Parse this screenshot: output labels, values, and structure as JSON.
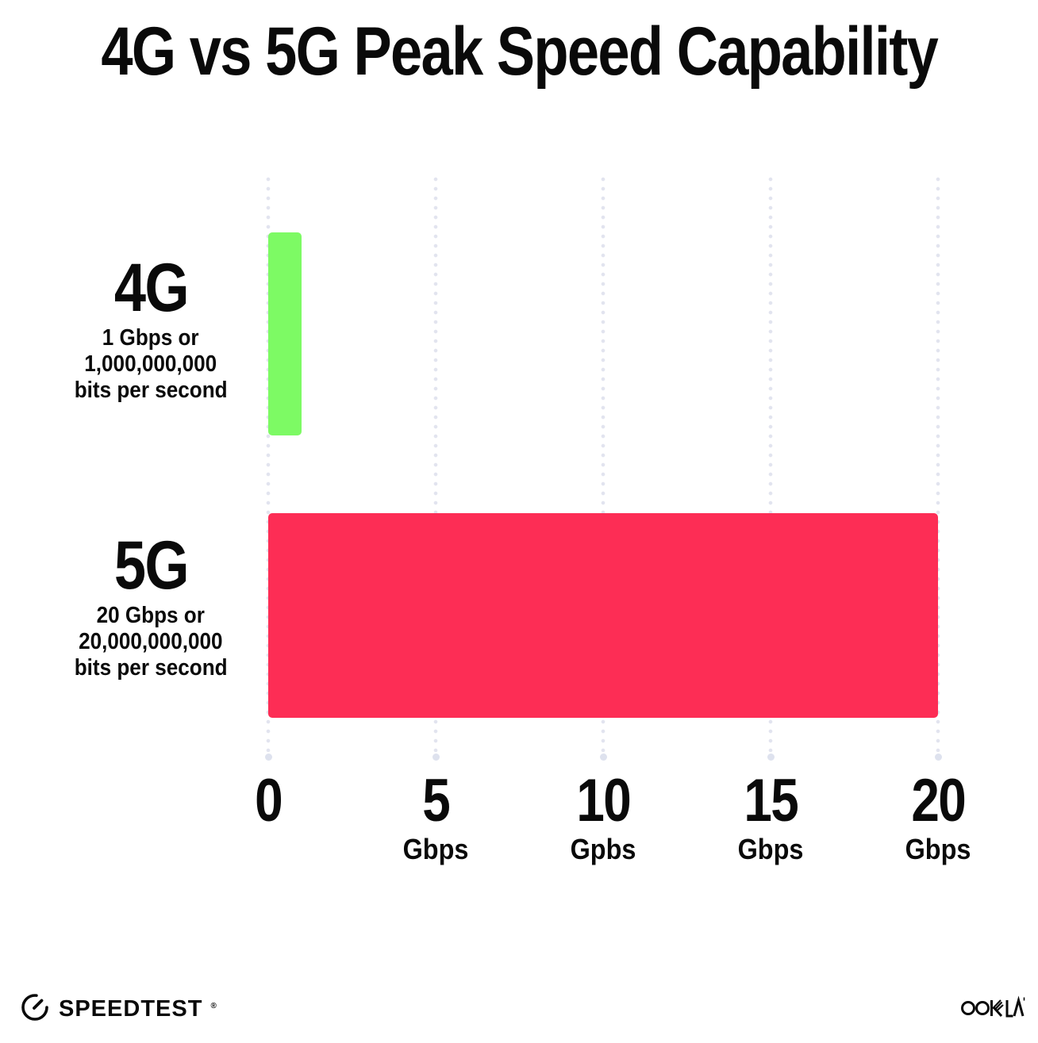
{
  "chart_data": {
    "type": "bar",
    "orientation": "horizontal",
    "title": "4G vs 5G Peak Speed Capability",
    "categories": [
      "4G",
      "5G"
    ],
    "values": [
      1,
      20
    ],
    "value_unit": "Gbps",
    "bar_colors": [
      "#7dfa64",
      "#fd2d55"
    ],
    "row_sublabels": [
      [
        "1 Gbps or",
        "1,000,000,000",
        "bits per second"
      ],
      [
        "20 Gbps or",
        "20,000,000,000",
        "bits per second"
      ]
    ],
    "xlim": [
      0,
      20
    ],
    "x_ticks": [
      {
        "value": 0,
        "label": "0",
        "unit": ""
      },
      {
        "value": 5,
        "label": "5",
        "unit": "Gbps"
      },
      {
        "value": 10,
        "label": "10",
        "unit": "Gpbs"
      },
      {
        "value": 15,
        "label": "15",
        "unit": "Gbps"
      },
      {
        "value": 20,
        "label": "20",
        "unit": "Gbps"
      }
    ],
    "grid": "dotted-vertical-gridlines",
    "legend": "none"
  },
  "footer": {
    "speedtest_label": "SPEEDTEST",
    "speedtest_mark": "®",
    "ookla_label": "OOKLA"
  }
}
